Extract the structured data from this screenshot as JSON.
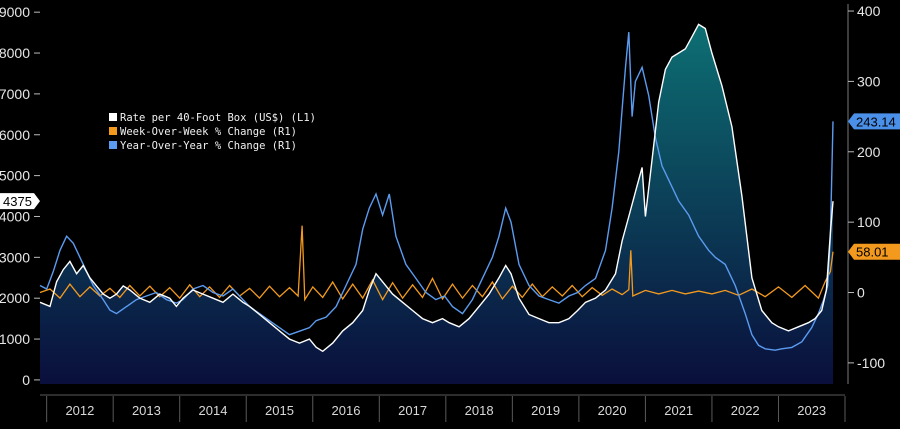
{
  "chart_data": {
    "type": "line",
    "legend": {
      "placement": "top-left",
      "entries": [
        {
          "name": "Rate per 40-Foot Box (US$) (L1)",
          "color": "#ffffff"
        },
        {
          "name": "Week-Over-Week % Change (R1)",
          "color": "#f39a1e"
        },
        {
          "name": "Year-Over-Year % Change (R1)",
          "color": "#5b9bf0"
        }
      ]
    },
    "x_axis": {
      "ticks": [
        "2012",
        "2013",
        "2014",
        "2015",
        "2016",
        "2017",
        "2018",
        "2019",
        "2020",
        "2021",
        "2022",
        "2023"
      ],
      "range": [
        2011.9,
        2024.0
      ]
    },
    "y_left": {
      "ticks": [
        "0",
        "1000",
        "2000",
        "3000",
        "4000",
        "5000",
        "6000",
        "7000",
        "8000",
        "9000"
      ],
      "range": [
        -100,
        9200
      ]
    },
    "y_right": {
      "ticks": [
        "-100",
        "0",
        "100",
        "200",
        "300",
        "400"
      ],
      "range": [
        -130,
        410
      ]
    },
    "last_value_labels": {
      "rate": "4375",
      "yoy": "243.14",
      "wow": "58.01"
    },
    "colors": {
      "rate": "#ffffff",
      "wow": "#f39a1e",
      "yoy": "#5b9bf0",
      "yoy_label_bg": "#4a8fe8",
      "wow_label_bg": "#f39a1e",
      "area_top": "#0d6f73",
      "area_bottom": "#0a0f3c",
      "divider": "#5a5a5a"
    },
    "series": [
      {
        "name": "Rate per 40-Foot Box (US$) (L1)",
        "axis": "left",
        "points": [
          [
            2011.9,
            1900
          ],
          [
            2012.05,
            1800
          ],
          [
            2012.15,
            2400
          ],
          [
            2012.25,
            2700
          ],
          [
            2012.35,
            2900
          ],
          [
            2012.45,
            2600
          ],
          [
            2012.55,
            2800
          ],
          [
            2012.65,
            2500
          ],
          [
            2012.75,
            2300
          ],
          [
            2012.85,
            2100
          ],
          [
            2012.95,
            2000
          ],
          [
            2013.05,
            2100
          ],
          [
            2013.15,
            2300
          ],
          [
            2013.25,
            2200
          ],
          [
            2013.4,
            2000
          ],
          [
            2013.55,
            1900
          ],
          [
            2013.7,
            2100
          ],
          [
            2013.85,
            2000
          ],
          [
            2013.95,
            1800
          ],
          [
            2014.05,
            2000
          ],
          [
            2014.2,
            2200
          ],
          [
            2014.35,
            2100
          ],
          [
            2014.5,
            2000
          ],
          [
            2014.65,
            1900
          ],
          [
            2014.8,
            2100
          ],
          [
            2014.95,
            1900
          ],
          [
            2015.05,
            1800
          ],
          [
            2015.2,
            1600
          ],
          [
            2015.35,
            1400
          ],
          [
            2015.5,
            1200
          ],
          [
            2015.65,
            1000
          ],
          [
            2015.8,
            900
          ],
          [
            2015.95,
            1000
          ],
          [
            2016.05,
            800
          ],
          [
            2016.15,
            700
          ],
          [
            2016.3,
            900
          ],
          [
            2016.45,
            1200
          ],
          [
            2016.6,
            1400
          ],
          [
            2016.75,
            1700
          ],
          [
            2016.85,
            2200
          ],
          [
            2016.95,
            2600
          ],
          [
            2017.05,
            2400
          ],
          [
            2017.2,
            2100
          ],
          [
            2017.35,
            1900
          ],
          [
            2017.5,
            1700
          ],
          [
            2017.65,
            1500
          ],
          [
            2017.8,
            1400
          ],
          [
            2017.95,
            1500
          ],
          [
            2018.05,
            1400
          ],
          [
            2018.2,
            1300
          ],
          [
            2018.35,
            1500
          ],
          [
            2018.5,
            1800
          ],
          [
            2018.65,
            2100
          ],
          [
            2018.8,
            2500
          ],
          [
            2018.9,
            2800
          ],
          [
            2018.98,
            2600
          ],
          [
            2019.1,
            2000
          ],
          [
            2019.25,
            1600
          ],
          [
            2019.4,
            1500
          ],
          [
            2019.55,
            1400
          ],
          [
            2019.7,
            1400
          ],
          [
            2019.85,
            1500
          ],
          [
            2019.98,
            1700
          ],
          [
            2020.1,
            1900
          ],
          [
            2020.25,
            2000
          ],
          [
            2020.4,
            2200
          ],
          [
            2020.55,
            2600
          ],
          [
            2020.65,
            3400
          ],
          [
            2020.75,
            4000
          ],
          [
            2020.85,
            4600
          ],
          [
            2020.95,
            5200
          ],
          [
            2021.0,
            4000
          ],
          [
            2021.1,
            5400
          ],
          [
            2021.2,
            6800
          ],
          [
            2021.3,
            7600
          ],
          [
            2021.4,
            7900
          ],
          [
            2021.5,
            8000
          ],
          [
            2021.6,
            8100
          ],
          [
            2021.7,
            8400
          ],
          [
            2021.8,
            8700
          ],
          [
            2021.9,
            8600
          ],
          [
            2022.0,
            8000
          ],
          [
            2022.15,
            7200
          ],
          [
            2022.3,
            6200
          ],
          [
            2022.45,
            4500
          ],
          [
            2022.6,
            2500
          ],
          [
            2022.75,
            1700
          ],
          [
            2022.9,
            1400
          ],
          [
            2023.0,
            1300
          ],
          [
            2023.15,
            1200
          ],
          [
            2023.3,
            1300
          ],
          [
            2023.45,
            1400
          ],
          [
            2023.55,
            1500
          ],
          [
            2023.65,
            1700
          ],
          [
            2023.72,
            2200
          ],
          [
            2023.78,
            3600
          ],
          [
            2023.82,
            4375
          ]
        ]
      },
      {
        "name": "Week-Over-Week % Change (R1)",
        "axis": "right",
        "points": [
          [
            2011.9,
            0
          ],
          [
            2012.05,
            5
          ],
          [
            2012.2,
            -8
          ],
          [
            2012.35,
            12
          ],
          [
            2012.5,
            -6
          ],
          [
            2012.65,
            8
          ],
          [
            2012.8,
            -5
          ],
          [
            2012.95,
            6
          ],
          [
            2013.1,
            -7
          ],
          [
            2013.25,
            10
          ],
          [
            2013.4,
            -5
          ],
          [
            2013.55,
            9
          ],
          [
            2013.7,
            -6
          ],
          [
            2013.85,
            7
          ],
          [
            2014.0,
            -8
          ],
          [
            2014.15,
            11
          ],
          [
            2014.3,
            -6
          ],
          [
            2014.45,
            8
          ],
          [
            2014.6,
            -7
          ],
          [
            2014.75,
            10
          ],
          [
            2014.9,
            -5
          ],
          [
            2015.05,
            6
          ],
          [
            2015.2,
            -8
          ],
          [
            2015.35,
            9
          ],
          [
            2015.5,
            -6
          ],
          [
            2015.65,
            7
          ],
          [
            2015.78,
            -5
          ],
          [
            2015.84,
            95
          ],
          [
            2015.88,
            -10
          ],
          [
            2016.0,
            8
          ],
          [
            2016.15,
            -7
          ],
          [
            2016.3,
            15
          ],
          [
            2016.45,
            -9
          ],
          [
            2016.6,
            12
          ],
          [
            2016.75,
            -8
          ],
          [
            2016.9,
            18
          ],
          [
            2017.05,
            -10
          ],
          [
            2017.2,
            14
          ],
          [
            2017.35,
            -8
          ],
          [
            2017.5,
            11
          ],
          [
            2017.65,
            -7
          ],
          [
            2017.8,
            20
          ],
          [
            2017.95,
            -9
          ],
          [
            2018.1,
            12
          ],
          [
            2018.25,
            -8
          ],
          [
            2018.4,
            10
          ],
          [
            2018.55,
            -6
          ],
          [
            2018.7,
            15
          ],
          [
            2018.85,
            -9
          ],
          [
            2019.0,
            9
          ],
          [
            2019.15,
            -7
          ],
          [
            2019.3,
            12
          ],
          [
            2019.45,
            -6
          ],
          [
            2019.6,
            8
          ],
          [
            2019.75,
            -5
          ],
          [
            2019.9,
            10
          ],
          [
            2020.05,
            -6
          ],
          [
            2020.2,
            7
          ],
          [
            2020.35,
            -4
          ],
          [
            2020.5,
            5
          ],
          [
            2020.65,
            -3
          ],
          [
            2020.75,
            4
          ],
          [
            2020.78,
            60
          ],
          [
            2020.81,
            -5
          ],
          [
            2021.0,
            3
          ],
          [
            2021.2,
            -2
          ],
          [
            2021.4,
            3
          ],
          [
            2021.6,
            -2
          ],
          [
            2021.8,
            2
          ],
          [
            2022.0,
            -2
          ],
          [
            2022.2,
            3
          ],
          [
            2022.4,
            -4
          ],
          [
            2022.6,
            5
          ],
          [
            2022.8,
            -6
          ],
          [
            2023.0,
            8
          ],
          [
            2023.2,
            -7
          ],
          [
            2023.4,
            10
          ],
          [
            2023.6,
            -8
          ],
          [
            2023.7,
            15
          ],
          [
            2023.78,
            30
          ],
          [
            2023.82,
            58.01
          ]
        ]
      },
      {
        "name": "Year-Over-Year % Change (R1)",
        "axis": "right",
        "points": [
          [
            2011.9,
            10
          ],
          [
            2012.0,
            5
          ],
          [
            2012.1,
            30
          ],
          [
            2012.2,
            60
          ],
          [
            2012.3,
            80
          ],
          [
            2012.4,
            70
          ],
          [
            2012.5,
            50
          ],
          [
            2012.6,
            30
          ],
          [
            2012.7,
            10
          ],
          [
            2012.85,
            -10
          ],
          [
            2012.95,
            -25
          ],
          [
            2013.05,
            -30
          ],
          [
            2013.2,
            -20
          ],
          [
            2013.35,
            -10
          ],
          [
            2013.5,
            -5
          ],
          [
            2013.65,
            0
          ],
          [
            2013.8,
            -10
          ],
          [
            2013.95,
            -15
          ],
          [
            2014.05,
            -10
          ],
          [
            2014.2,
            5
          ],
          [
            2014.35,
            10
          ],
          [
            2014.5,
            0
          ],
          [
            2014.65,
            -5
          ],
          [
            2014.8,
            5
          ],
          [
            2014.95,
            -10
          ],
          [
            2015.05,
            -20
          ],
          [
            2015.2,
            -30
          ],
          [
            2015.35,
            -40
          ],
          [
            2015.5,
            -50
          ],
          [
            2015.65,
            -60
          ],
          [
            2015.8,
            -55
          ],
          [
            2015.95,
            -50
          ],
          [
            2016.05,
            -40
          ],
          [
            2016.2,
            -35
          ],
          [
            2016.35,
            -20
          ],
          [
            2016.5,
            10
          ],
          [
            2016.65,
            40
          ],
          [
            2016.75,
            90
          ],
          [
            2016.85,
            120
          ],
          [
            2016.95,
            140
          ],
          [
            2017.05,
            110
          ],
          [
            2017.15,
            140
          ],
          [
            2017.25,
            80
          ],
          [
            2017.4,
            40
          ],
          [
            2017.55,
            20
          ],
          [
            2017.7,
            0
          ],
          [
            2017.85,
            -10
          ],
          [
            2017.98,
            -5
          ],
          [
            2018.1,
            -20
          ],
          [
            2018.25,
            -30
          ],
          [
            2018.4,
            -10
          ],
          [
            2018.55,
            20
          ],
          [
            2018.7,
            50
          ],
          [
            2018.8,
            80
          ],
          [
            2018.9,
            120
          ],
          [
            2018.98,
            100
          ],
          [
            2019.1,
            40
          ],
          [
            2019.25,
            10
          ],
          [
            2019.4,
            -5
          ],
          [
            2019.55,
            -10
          ],
          [
            2019.7,
            -15
          ],
          [
            2019.85,
            -5
          ],
          [
            2019.98,
            0
          ],
          [
            2020.1,
            10
          ],
          [
            2020.25,
            20
          ],
          [
            2020.4,
            60
          ],
          [
            2020.5,
            120
          ],
          [
            2020.6,
            200
          ],
          [
            2020.65,
            260
          ],
          [
            2020.7,
            320
          ],
          [
            2020.75,
            370
          ],
          [
            2020.8,
            250
          ],
          [
            2020.85,
            300
          ],
          [
            2020.95,
            320
          ],
          [
            2021.05,
            280
          ],
          [
            2021.15,
            220
          ],
          [
            2021.25,
            180
          ],
          [
            2021.35,
            160
          ],
          [
            2021.5,
            130
          ],
          [
            2021.65,
            110
          ],
          [
            2021.8,
            80
          ],
          [
            2021.95,
            60
          ],
          [
            2022.05,
            50
          ],
          [
            2022.2,
            40
          ],
          [
            2022.35,
            10
          ],
          [
            2022.5,
            -30
          ],
          [
            2022.6,
            -60
          ],
          [
            2022.7,
            -75
          ],
          [
            2022.8,
            -80
          ],
          [
            2022.95,
            -82
          ],
          [
            2023.05,
            -80
          ],
          [
            2023.2,
            -78
          ],
          [
            2023.35,
            -70
          ],
          [
            2023.5,
            -50
          ],
          [
            2023.6,
            -30
          ],
          [
            2023.68,
            -10
          ],
          [
            2023.74,
            10
          ],
          [
            2023.78,
            80
          ],
          [
            2023.82,
            243.14
          ]
        ]
      }
    ]
  }
}
